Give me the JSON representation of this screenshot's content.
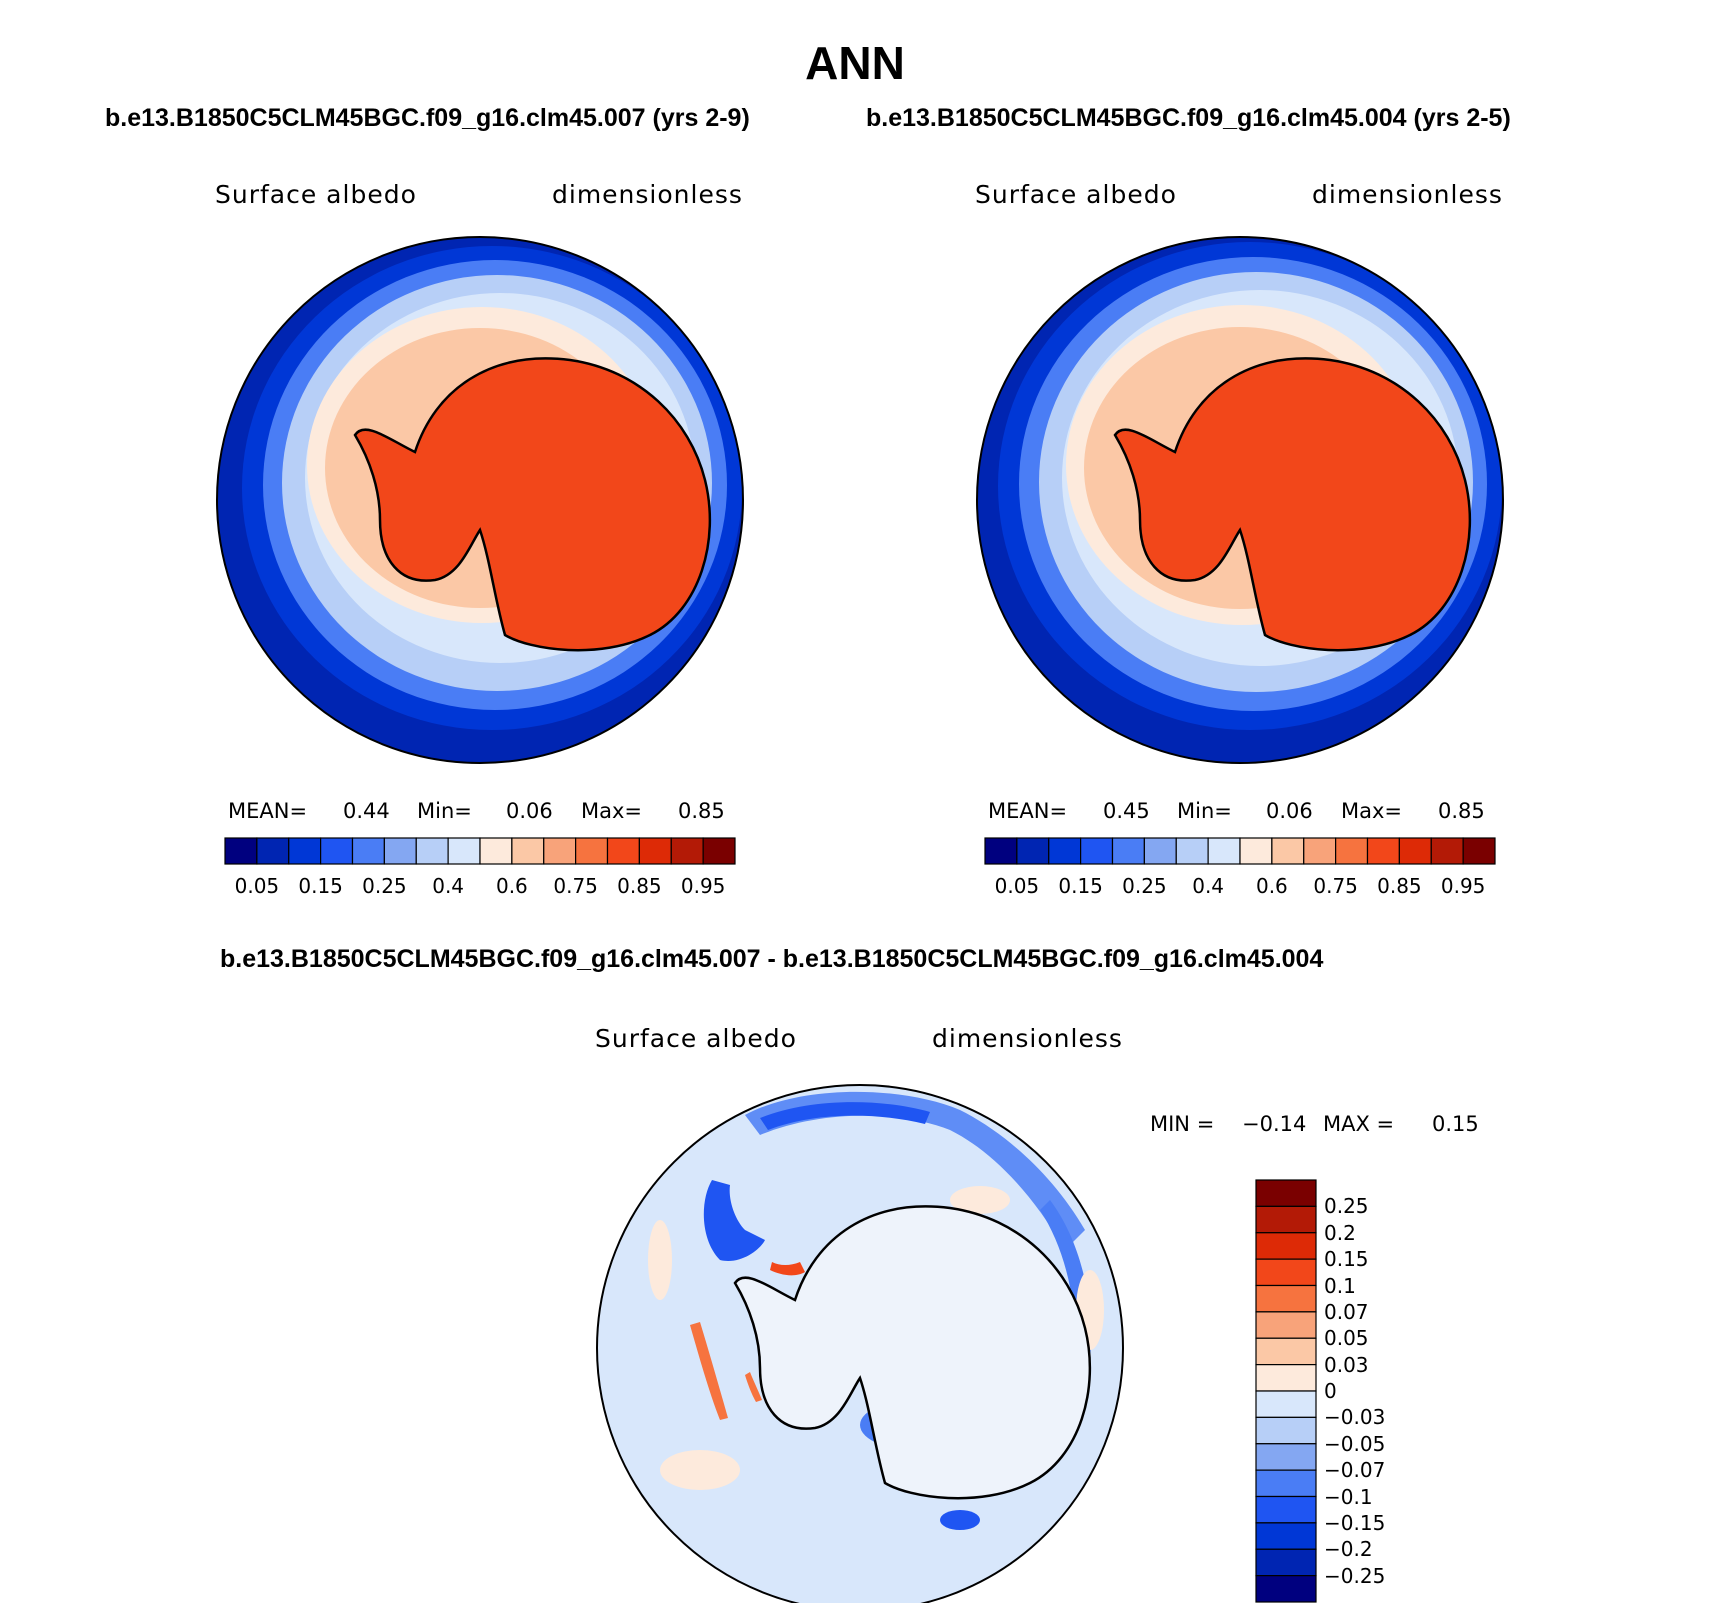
{
  "title": "ANN",
  "top_caption_left": "b.e13.B1850C5CLM45BGC.f09_g16.clm45.007 (yrs 2-9)",
  "top_caption_right": "b.e13.B1850C5CLM45BGC.f09_g16.clm45.004 (yrs 2-5)",
  "diff_caption": "b.e13.B1850C5CLM45BGC.f09_g16.clm45.007 - b.e13.B1850C5CLM45BGC.f09_g16.clm45.004",
  "panels": [
    {
      "variable": "Surface albedo",
      "units": "dimensionless",
      "stats": {
        "mean_label": "MEAN=",
        "mean": "0.44",
        "min_label": "Min=",
        "min": "0.06",
        "max_label": "Max=",
        "max": "0.85"
      }
    },
    {
      "variable": "Surface albedo",
      "units": "dimensionless",
      "stats": {
        "mean_label": "MEAN=",
        "mean": "0.45",
        "min_label": "Min=",
        "min": "0.06",
        "max_label": "Max=",
        "max": "0.85"
      }
    }
  ],
  "colorbar_abs": {
    "colors": [
      "#00007f",
      "#0025b2",
      "#0037d6",
      "#1f55f2",
      "#4a7df5",
      "#84a7f2",
      "#b7cff7",
      "#d8e7fb",
      "#fdeadc",
      "#fbc8a6",
      "#f8a37a",
      "#f6733f",
      "#f2471a",
      "#dd2a06",
      "#b31a06",
      "#7a0000"
    ],
    "tick_labels": [
      "0.05",
      "0.15",
      "0.25",
      "0.4",
      "0.6",
      "0.75",
      "0.85",
      "0.95"
    ]
  },
  "diff_panel": {
    "variable": "Surface albedo",
    "units": "dimensionless",
    "stats": {
      "min_label": "MIN =",
      "min": "−0.14",
      "max_label": "MAX =",
      "max": "0.15"
    }
  },
  "colorbar_diff": {
    "colors_top_to_bottom": [
      "#7a0000",
      "#b31a06",
      "#dd2a06",
      "#f2471a",
      "#f6733f",
      "#f8a37a",
      "#fbc8a6",
      "#fdeadc",
      "#d8e7fb",
      "#b7cff7",
      "#84a7f2",
      "#4a7df5",
      "#1f55f2",
      "#0037d6",
      "#0025b2",
      "#00007f"
    ],
    "tick_labels": [
      "0.25",
      "0.2",
      "0.15",
      "0.1",
      "0.07",
      "0.05",
      "0.03",
      "0",
      "−0.03",
      "−0.05",
      "−0.07",
      "−0.1",
      "−0.15",
      "−0.2",
      "−0.25"
    ]
  }
}
